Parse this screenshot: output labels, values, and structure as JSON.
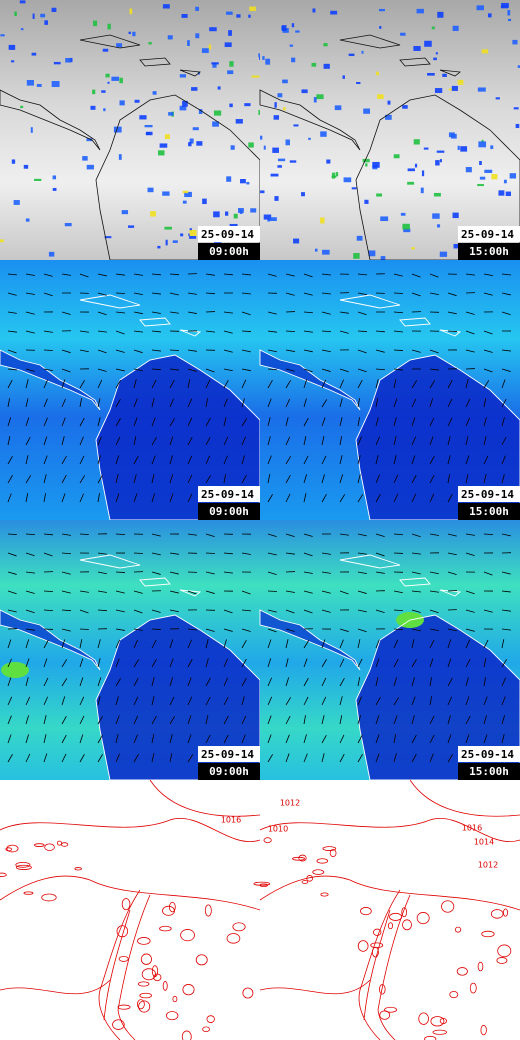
{
  "rows": [
    [
      {
        "date": "25-09-14",
        "time": "09:00h"
      },
      {
        "date": "25-09-14",
        "time": "15:00h"
      }
    ],
    [
      {
        "date": "25-09-14",
        "time": "09:00h"
      },
      {
        "date": "25-09-14",
        "time": "15:00h"
      }
    ],
    [
      {
        "date": "25-09-14",
        "time": "09:00h"
      },
      {
        "date": "25-09-14",
        "time": "15:00h"
      }
    ]
  ],
  "contour_labels": [
    [
      "1016"
    ],
    [
      "1012",
      "1010",
      "1016",
      "1014",
      "1012"
    ]
  ]
}
